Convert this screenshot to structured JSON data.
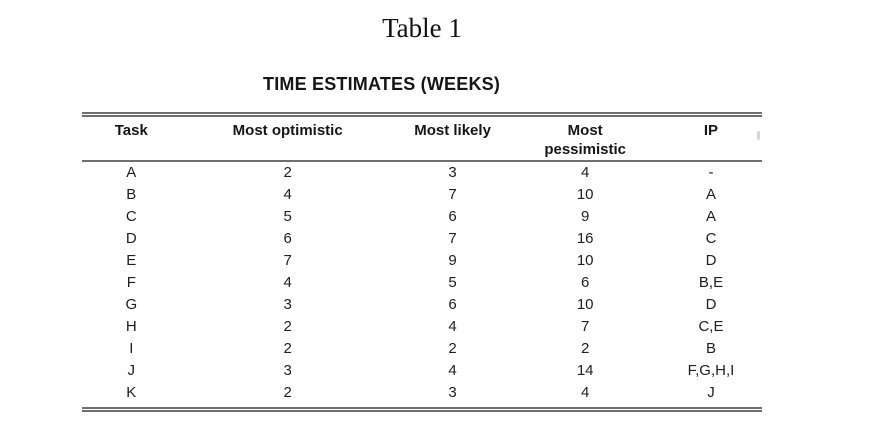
{
  "page": {
    "title": "Table 1",
    "caption": "TIME ESTIMATES (WEEKS)"
  },
  "table": {
    "columns": [
      "Task",
      "Most optimistic",
      "Most likely",
      "Most pessimistic",
      "IP"
    ],
    "rows": [
      [
        "A",
        "2",
        "3",
        "4",
        "-"
      ],
      [
        "B",
        "4",
        "7",
        "10",
        "A"
      ],
      [
        "C",
        "5",
        "6",
        "9",
        "A"
      ],
      [
        "D",
        "6",
        "7",
        "16",
        "C"
      ],
      [
        "E",
        "7",
        "9",
        "10",
        "D"
      ],
      [
        "F",
        "4",
        "5",
        "6",
        "B,E"
      ],
      [
        "G",
        "3",
        "6",
        "10",
        "D"
      ],
      [
        "H",
        "2",
        "4",
        "7",
        "C,E"
      ],
      [
        "I",
        "2",
        "2",
        "2",
        "B"
      ],
      [
        "J",
        "3",
        "4",
        "14",
        "F,G,H,I"
      ],
      [
        "K",
        "2",
        "3",
        "4",
        "J"
      ]
    ]
  },
  "colors": {
    "background": "#ffffff",
    "rule": "#6f6f6f",
    "text": "#1c1c1c"
  }
}
